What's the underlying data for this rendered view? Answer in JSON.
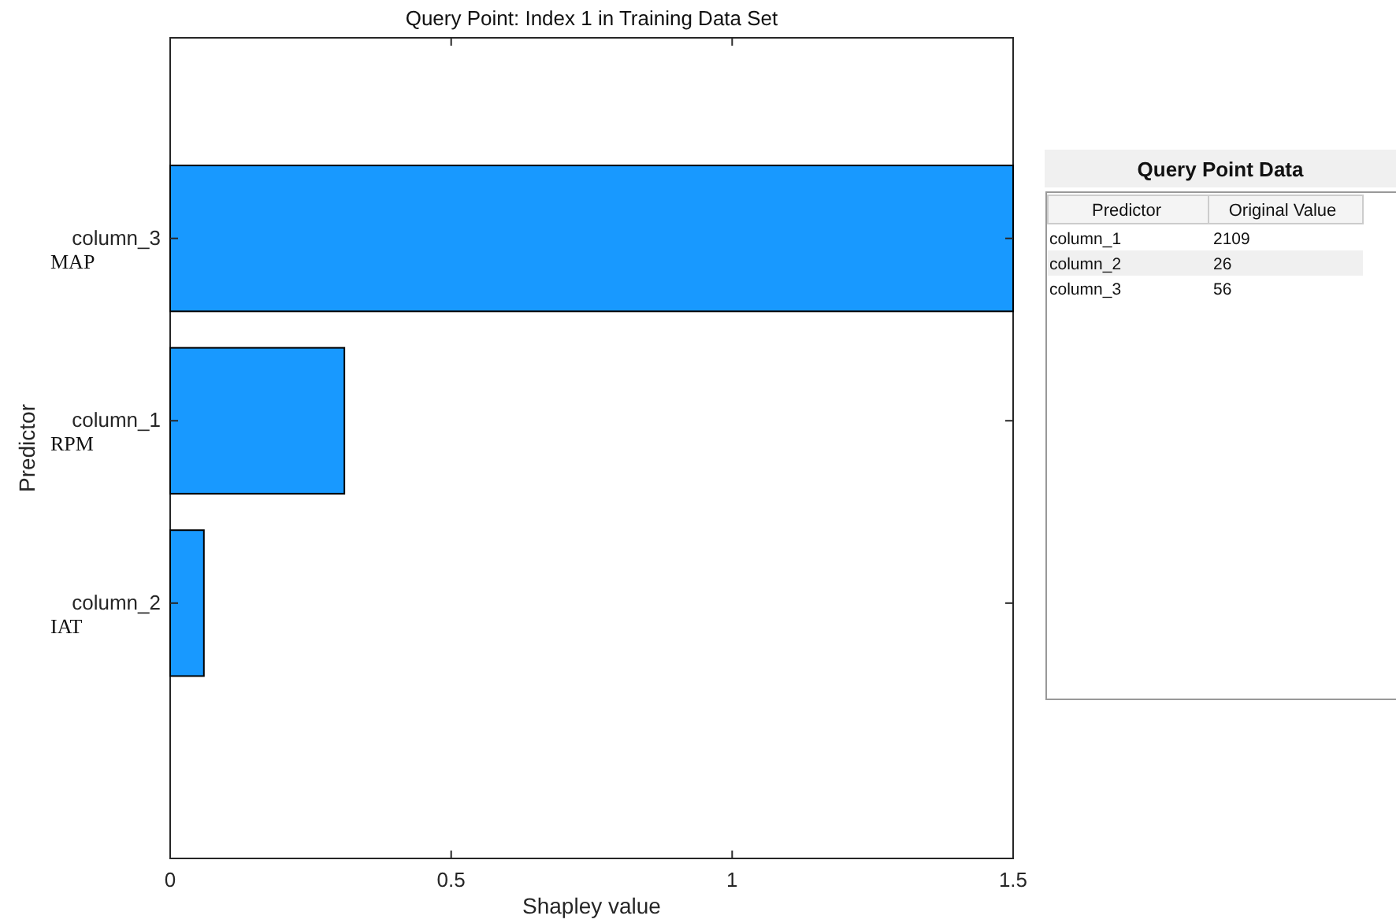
{
  "chart_data": [
    {
      "type": "bar",
      "orientation": "horizontal",
      "title": "Query Point: Index 1 in Training Data Set",
      "xlabel": "Shapley value",
      "ylabel": "Predictor",
      "categories": [
        "column_3",
        "column_1",
        "column_2"
      ],
      "values": [
        1.5,
        0.31,
        0.06
      ],
      "color": "#1899ff",
      "xlim": [
        0,
        1.5
      ],
      "xticks": [
        0,
        0.5,
        1,
        1.5
      ],
      "grid": false,
      "annotations": [
        "MAP",
        "RPM",
        "IAT"
      ]
    },
    {
      "type": "other",
      "title": "Query Point Data",
      "annotations": [
        "Predictor",
        "Original Value"
      ],
      "categories": [
        "column_1",
        "column_2",
        "column_3"
      ],
      "values": [
        2109,
        26,
        56
      ],
      "data_labels": true
    }
  ]
}
